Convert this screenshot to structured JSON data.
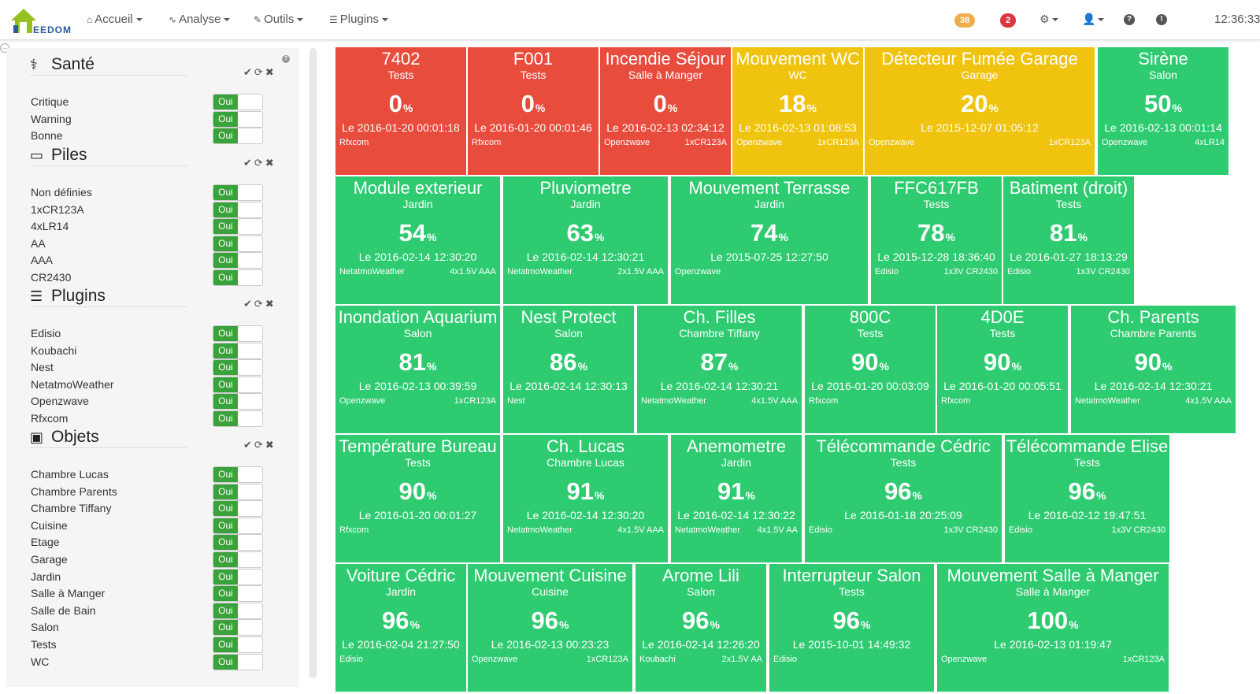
{
  "navbar": {
    "logo_text": "EEDOM",
    "menu": [
      {
        "label": "Accueil",
        "icon": "home-icon"
      },
      {
        "label": "Analyse",
        "icon": "stethoscope-icon"
      },
      {
        "label": "Outils",
        "icon": "wrench-icon"
      },
      {
        "label": "Plugins",
        "icon": "tasks-icon"
      }
    ],
    "badge_orange": "38",
    "badge_red": "2",
    "badge_orange_color": "#f0ad4e",
    "badge_red_color": "#d9363e",
    "clock": "12:36:33"
  },
  "sidebar": {
    "toggle_label": "Oui",
    "sections": [
      {
        "title": "Santé",
        "icon": "heartbeat-icon",
        "items": [
          "Critique",
          "Warning",
          "Bonne"
        ]
      },
      {
        "title": "Piles",
        "icon": "battery-icon",
        "items": [
          "Non définies",
          "1xCR123A",
          "4xLR14",
          "AA",
          "AAA",
          "CR2430"
        ]
      },
      {
        "title": "Plugins",
        "icon": "tasks-icon",
        "items": [
          "Edisio",
          "Koubachi",
          "Nest",
          "NetatmoWeather",
          "Openzwave",
          "Rfxcom"
        ]
      },
      {
        "title": "Objets",
        "icon": "picture-icon",
        "items": [
          "Chambre Lucas",
          "Chambre Parents",
          "Chambre Tiffany",
          "Cuisine",
          "Etage",
          "Garage",
          "Jardin",
          "Salle à Manger",
          "Salle de Bain",
          "Salon",
          "Tests",
          "WC"
        ]
      }
    ]
  },
  "colors": {
    "red": "#e84c3d",
    "yellow": "#f0c30f",
    "green": "#2ecb71"
  },
  "tiles": [
    {
      "name": "7402",
      "room": "Tests",
      "value": "0",
      "unit": "%",
      "date": "Le 2016-01-20 00:01:18",
      "plugin": "Rfxcom",
      "battery": "",
      "status": "red"
    },
    {
      "name": "F001",
      "room": "Tests",
      "value": "0",
      "unit": "%",
      "date": "Le 2016-01-20 00:01:46",
      "plugin": "Rfxcom",
      "battery": "",
      "status": "red"
    },
    {
      "name": "Incendie Séjour",
      "room": "Salle à Manger",
      "value": "0",
      "unit": "%",
      "date": "Le 2016-02-13 02:34:12",
      "plugin": "Openzwave",
      "battery": "1xCR123A",
      "status": "red"
    },
    {
      "name": "Mouvement WC",
      "room": "WC",
      "value": "18",
      "unit": "%",
      "date": "Le 2016-02-13 01:08:53",
      "plugin": "Openzwave",
      "battery": "1xCR123A",
      "status": "yellow"
    },
    {
      "name": "Détecteur Fumée Garage",
      "room": "Garage",
      "value": "20",
      "unit": "%",
      "date": "Le 2015-12-07 01:05:12",
      "plugin": "Openzwave",
      "battery": "1xCR123A",
      "status": "yellow"
    },
    {
      "name": "Sirène",
      "room": "Salon",
      "value": "50",
      "unit": "%",
      "date": "Le 2016-02-13 00:01:14",
      "plugin": "Openzwave",
      "battery": "4xLR14",
      "status": "green"
    },
    {
      "name": "Module exterieur",
      "room": "Jardin",
      "value": "54",
      "unit": "%",
      "date": "Le 2016-02-14 12:30:20",
      "plugin": "NetatmoWeather",
      "battery": "4x1.5V AAA",
      "status": "green"
    },
    {
      "name": "Pluviometre",
      "room": "Jardin",
      "value": "63",
      "unit": "%",
      "date": "Le 2016-02-14 12:30:21",
      "plugin": "NetatmoWeather",
      "battery": "2x1.5V AAA",
      "status": "green"
    },
    {
      "name": "Mouvement Terrasse",
      "room": "Jardin",
      "value": "74",
      "unit": "%",
      "date": "Le 2015-07-25 12:27:50",
      "plugin": "Openzwave",
      "battery": "",
      "status": "green"
    },
    {
      "name": "FFC617FB",
      "room": "Tests",
      "value": "78",
      "unit": "%",
      "date": "Le 2015-12-28 18:36:40",
      "plugin": "Edisio",
      "battery": "1x3V CR2430",
      "status": "green"
    },
    {
      "name": "Batiment (droit)",
      "room": "Tests",
      "value": "81",
      "unit": "%",
      "date": "Le 2016-01-27 18:13:29",
      "plugin": "Edisio",
      "battery": "1x3V CR2430",
      "status": "green"
    },
    {
      "name": "Inondation Aquarium",
      "room": "Salon",
      "value": "81",
      "unit": "%",
      "date": "Le 2016-02-13 00:39:59",
      "plugin": "Openzwave",
      "battery": "1xCR123A",
      "status": "green"
    },
    {
      "name": "Nest Protect",
      "room": "Salon",
      "value": "86",
      "unit": "%",
      "date": "Le 2016-02-14 12:30:13",
      "plugin": "Nest",
      "battery": "",
      "status": "green"
    },
    {
      "name": "Ch. Filles",
      "room": "Chambre Tiffany",
      "value": "87",
      "unit": "%",
      "date": "Le 2016-02-14 12:30:21",
      "plugin": "NetatmoWeather",
      "battery": "4x1.5V AAA",
      "status": "green"
    },
    {
      "name": "800C",
      "room": "Tests",
      "value": "90",
      "unit": "%",
      "date": "Le 2016-01-20 00:03:09",
      "plugin": "Rfxcom",
      "battery": "",
      "status": "green"
    },
    {
      "name": "4D0E",
      "room": "Tests",
      "value": "90",
      "unit": "%",
      "date": "Le 2016-01-20 00:05:51",
      "plugin": "Rfxcom",
      "battery": "",
      "status": "green"
    },
    {
      "name": "Ch. Parents",
      "room": "Chambre Parents",
      "value": "90",
      "unit": "%",
      "date": "Le 2016-02-14 12:30:21",
      "plugin": "NetatmoWeather",
      "battery": "4x1.5V AAA",
      "status": "green"
    },
    {
      "name": "Température Bureau",
      "room": "Tests",
      "value": "90",
      "unit": "%",
      "date": "Le 2016-01-20 00:01:27",
      "plugin": "Rfxcom",
      "battery": "",
      "status": "green"
    },
    {
      "name": "Ch. Lucas",
      "room": "Chambre Lucas",
      "value": "91",
      "unit": "%",
      "date": "Le 2016-02-14 12:30:20",
      "plugin": "NetatmoWeather",
      "battery": "4x1.5V AAA",
      "status": "green"
    },
    {
      "name": "Anemometre",
      "room": "Jardin",
      "value": "91",
      "unit": "%",
      "date": "Le 2016-02-14 12:30:22",
      "plugin": "NetatmoWeather",
      "battery": "4x1.5V AA",
      "status": "green"
    },
    {
      "name": "Télécommande Cédric",
      "room": "Tests",
      "value": "96",
      "unit": "%",
      "date": "Le 2016-01-18 20:25:09",
      "plugin": "Edisio",
      "battery": "1x3V CR2430",
      "status": "green"
    },
    {
      "name": "Télécommande Elise",
      "room": "Tests",
      "value": "96",
      "unit": "%",
      "date": "Le 2016-02-12 19:47:51",
      "plugin": "Edisio",
      "battery": "1x3V CR2430",
      "status": "green"
    },
    {
      "name": "Voiture Cédric",
      "room": "Jardin",
      "value": "96",
      "unit": "%",
      "date": "Le 2016-02-04 21:27:50",
      "plugin": "Edisio",
      "battery": "",
      "status": "green"
    },
    {
      "name": "Mouvement Cuisine",
      "room": "Cuisine",
      "value": "96",
      "unit": "%",
      "date": "Le 2016-02-13 00:23:23",
      "plugin": "Openzwave",
      "battery": "1xCR123A",
      "status": "green"
    },
    {
      "name": "Arome Lili",
      "room": "Salon",
      "value": "96",
      "unit": "%",
      "date": "Le 2016-02-14 12:26:20",
      "plugin": "Koubachi",
      "battery": "2x1.5V AA",
      "status": "green"
    },
    {
      "name": "Interrupteur Salon",
      "room": "Tests",
      "value": "96",
      "unit": "%",
      "date": "Le 2015-10-01 14:49:32",
      "plugin": "Edisio",
      "battery": "",
      "status": "green"
    },
    {
      "name": "Mouvement Salle à Manger",
      "room": "Salle à Manger",
      "value": "100",
      "unit": "%",
      "date": "Le 2016-02-13 01:19:47",
      "plugin": "Openzwave",
      "battery": "1xCR123A",
      "status": "green"
    }
  ]
}
